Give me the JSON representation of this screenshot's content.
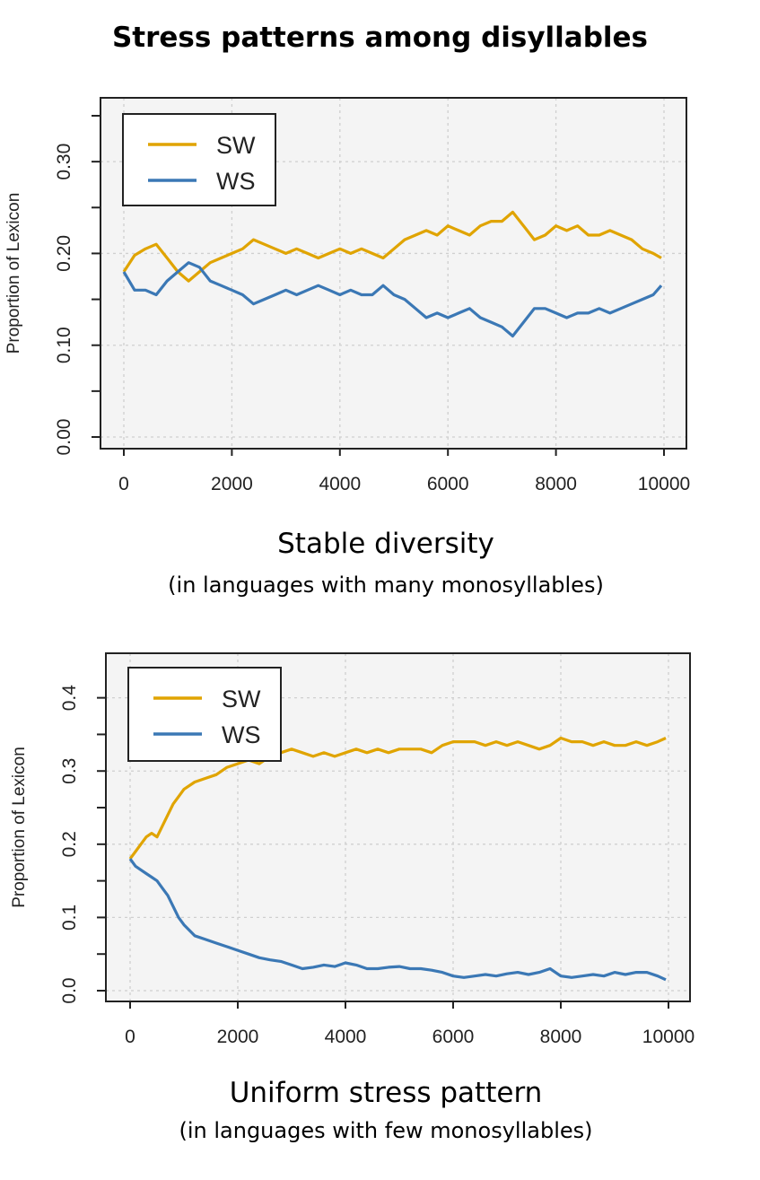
{
  "figure_title": "Stress patterns among disyllables",
  "colors": {
    "SW": "#e0a400",
    "WS": "#3b78b5",
    "panel_bg": "#f4f4f4",
    "grid": "#cfcfcf"
  },
  "chart_data": [
    {
      "type": "line",
      "title": "Stable diversity",
      "subtitle": "(in languages with many monosyllables)",
      "ylabel": "Proportion of Lexicon",
      "xlabel": "",
      "xlim": [
        0,
        10000
      ],
      "ylim": [
        0,
        0.35
      ],
      "x_ticks": [
        0,
        2000,
        4000,
        6000,
        8000,
        10000
      ],
      "y_ticks": [
        0.0,
        0.1,
        0.2,
        0.3
      ],
      "y_tick_labels": [
        "0.00",
        "0.10",
        "0.20",
        "0.30"
      ],
      "grid": true,
      "legend": "top-left",
      "x": [
        0,
        200,
        400,
        600,
        800,
        1000,
        1200,
        1400,
        1600,
        1800,
        2000,
        2200,
        2400,
        2600,
        2800,
        3000,
        3200,
        3400,
        3600,
        3800,
        4000,
        4200,
        4400,
        4600,
        4800,
        5000,
        5200,
        5400,
        5600,
        5800,
        6000,
        6200,
        6400,
        6600,
        6800,
        7000,
        7200,
        7400,
        7600,
        7800,
        8000,
        8200,
        8400,
        8600,
        8800,
        9000,
        9200,
        9400,
        9600,
        9800,
        9950
      ],
      "series": [
        {
          "name": "SW",
          "values": [
            0.18,
            0.198,
            0.205,
            0.21,
            0.195,
            0.18,
            0.17,
            0.18,
            0.19,
            0.195,
            0.2,
            0.205,
            0.215,
            0.21,
            0.205,
            0.2,
            0.205,
            0.2,
            0.195,
            0.2,
            0.205,
            0.2,
            0.205,
            0.2,
            0.195,
            0.205,
            0.215,
            0.22,
            0.225,
            0.22,
            0.23,
            0.225,
            0.22,
            0.23,
            0.235,
            0.235,
            0.245,
            0.23,
            0.215,
            0.22,
            0.23,
            0.225,
            0.23,
            0.22,
            0.22,
            0.225,
            0.22,
            0.215,
            0.205,
            0.2,
            0.195
          ]
        },
        {
          "name": "WS",
          "values": [
            0.18,
            0.16,
            0.16,
            0.155,
            0.17,
            0.18,
            0.19,
            0.185,
            0.17,
            0.165,
            0.16,
            0.155,
            0.145,
            0.15,
            0.155,
            0.16,
            0.155,
            0.16,
            0.165,
            0.16,
            0.155,
            0.16,
            0.155,
            0.155,
            0.165,
            0.155,
            0.15,
            0.14,
            0.13,
            0.135,
            0.13,
            0.135,
            0.14,
            0.13,
            0.125,
            0.12,
            0.11,
            0.125,
            0.14,
            0.14,
            0.135,
            0.13,
            0.135,
            0.135,
            0.14,
            0.135,
            0.14,
            0.145,
            0.15,
            0.155,
            0.165
          ]
        }
      ]
    },
    {
      "type": "line",
      "title": "Uniform stress pattern",
      "subtitle": "(in languages with few monosyllables)",
      "ylabel": "Proportion of Lexicon",
      "xlabel": "",
      "xlim": [
        0,
        10000
      ],
      "ylim": [
        0,
        0.44
      ],
      "x_ticks": [
        0,
        2000,
        4000,
        6000,
        8000,
        10000
      ],
      "y_ticks": [
        0.0,
        0.1,
        0.2,
        0.3,
        0.4
      ],
      "y_tick_labels": [
        "0.0",
        "0.1",
        "0.2",
        "0.3",
        "0.4"
      ],
      "grid": true,
      "legend": "top-left",
      "x": [
        0,
        100,
        200,
        300,
        400,
        500,
        600,
        700,
        800,
        900,
        1000,
        1200,
        1400,
        1600,
        1800,
        2000,
        2200,
        2400,
        2600,
        2800,
        3000,
        3200,
        3400,
        3600,
        3800,
        4000,
        4200,
        4400,
        4600,
        4800,
        5000,
        5200,
        5400,
        5600,
        5800,
        6000,
        6200,
        6400,
        6600,
        6800,
        7000,
        7200,
        7400,
        7600,
        7800,
        8000,
        8200,
        8400,
        8600,
        8800,
        9000,
        9200,
        9400,
        9600,
        9800,
        9950
      ],
      "series": [
        {
          "name": "SW",
          "values": [
            0.18,
            0.19,
            0.2,
            0.21,
            0.215,
            0.21,
            0.225,
            0.24,
            0.255,
            0.265,
            0.275,
            0.285,
            0.29,
            0.295,
            0.305,
            0.31,
            0.315,
            0.31,
            0.32,
            0.325,
            0.33,
            0.325,
            0.32,
            0.325,
            0.32,
            0.325,
            0.33,
            0.325,
            0.33,
            0.325,
            0.33,
            0.33,
            0.33,
            0.325,
            0.335,
            0.34,
            0.34,
            0.34,
            0.335,
            0.34,
            0.335,
            0.34,
            0.335,
            0.33,
            0.335,
            0.345,
            0.34,
            0.34,
            0.335,
            0.34,
            0.335,
            0.335,
            0.34,
            0.335,
            0.34,
            0.345
          ]
        },
        {
          "name": "WS",
          "values": [
            0.18,
            0.17,
            0.165,
            0.16,
            0.155,
            0.15,
            0.14,
            0.13,
            0.115,
            0.1,
            0.09,
            0.075,
            0.07,
            0.065,
            0.06,
            0.055,
            0.05,
            0.045,
            0.042,
            0.04,
            0.035,
            0.03,
            0.032,
            0.035,
            0.033,
            0.038,
            0.035,
            0.03,
            0.03,
            0.032,
            0.033,
            0.03,
            0.03,
            0.028,
            0.025,
            0.02,
            0.018,
            0.02,
            0.022,
            0.02,
            0.023,
            0.025,
            0.022,
            0.025,
            0.03,
            0.02,
            0.018,
            0.02,
            0.022,
            0.02,
            0.025,
            0.022,
            0.025,
            0.025,
            0.02,
            0.015
          ]
        }
      ]
    }
  ]
}
